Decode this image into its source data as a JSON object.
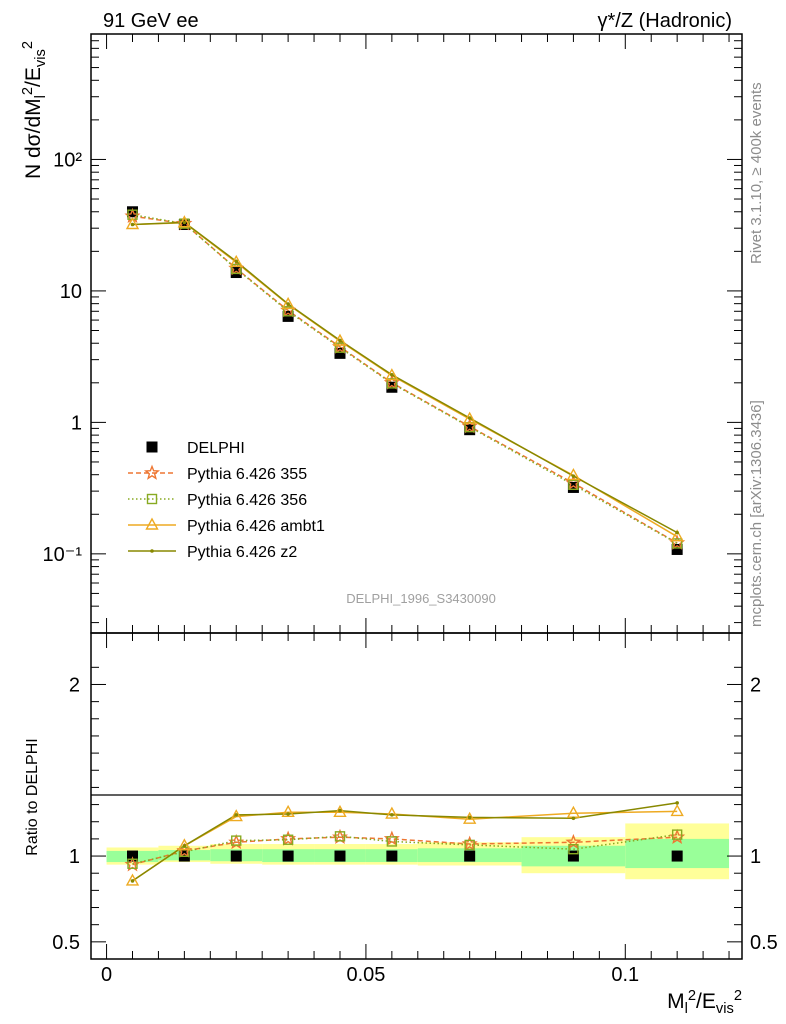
{
  "header": {
    "left_title": "91 GeV ee",
    "right_title": "γ*/Z (Hadronic)"
  },
  "side_text": {
    "rivet": "Rivet 3.1.10, ≥ 400k events",
    "mcplots": "mcplots.cern.ch [arXiv:1306.3436]"
  },
  "watermark": "DELPHI_1996_S3430090",
  "colors": {
    "data": "#000000",
    "p355": "#ee7733",
    "p356": "#88aa22",
    "ambt1": "#eeaa22",
    "z2": "#888800",
    "band_yellow": "#ffff99",
    "band_green": "#99ff99"
  },
  "chart_data": [
    {
      "type": "line",
      "panel": "main",
      "ylabel": "N dσ/dM_l²/E_vis²",
      "yscale": "log",
      "ylim": [
        0.025,
        900
      ],
      "xlim": [
        -0.003,
        0.1225
      ],
      "yticks": [
        "10⁻¹",
        "1",
        "10",
        "10²"
      ],
      "grid": false,
      "legend_position": "left-center",
      "x": [
        0.005,
        0.015,
        0.025,
        0.035,
        0.045,
        0.055,
        0.07,
        0.09,
        0.11
      ],
      "series": [
        {
          "name": "DELPHI",
          "style": "data",
          "values": [
            40.0,
            32.0,
            13.8,
            6.4,
            3.35,
            1.85,
            0.88,
            0.32,
            0.108
          ]
        },
        {
          "name": "Pythia 6.426 355",
          "style": "p355",
          "values": [
            37.0,
            32.5,
            14.8,
            7.1,
            3.75,
            2.0,
            0.93,
            0.345,
            0.121
          ]
        },
        {
          "name": "Pythia 6.426 356",
          "style": "p356",
          "values": [
            38.0,
            32.5,
            14.7,
            7.0,
            3.7,
            1.98,
            0.92,
            0.335,
            0.12
          ]
        },
        {
          "name": "Pythia 6.426 ambt1",
          "style": "ambt1",
          "values": [
            32.0,
            33.0,
            16.5,
            7.9,
            4.15,
            2.27,
            1.06,
            0.395,
            0.135
          ]
        },
        {
          "name": "Pythia 6.426 z2",
          "style": "z2",
          "values": [
            32.0,
            33.2,
            16.8,
            7.95,
            4.2,
            2.3,
            1.08,
            0.39,
            0.145
          ]
        }
      ]
    },
    {
      "type": "line",
      "panel": "ratio",
      "xlabel": "M_l²/E_vis²",
      "ylabel": "Ratio to DELPHI",
      "ylim": [
        0.4,
        2.3
      ],
      "xlim": [
        -0.003,
        0.1225
      ],
      "xticks": [
        "0",
        "0.05",
        "0.1"
      ],
      "yticks": [
        "0.5",
        "1",
        "2"
      ],
      "x": [
        0.005,
        0.015,
        0.025,
        0.035,
        0.045,
        0.055,
        0.07,
        0.09,
        0.11
      ],
      "bands": {
        "bins": [
          [
            0.0,
            0.01
          ],
          [
            0.01,
            0.02
          ],
          [
            0.02,
            0.03
          ],
          [
            0.03,
            0.04
          ],
          [
            0.04,
            0.05
          ],
          [
            0.05,
            0.06
          ],
          [
            0.06,
            0.08
          ],
          [
            0.08,
            0.1
          ],
          [
            0.1,
            0.12
          ]
        ],
        "yellow_lo": [
          0.95,
          0.965,
          0.955,
          0.95,
          0.95,
          0.95,
          0.945,
          0.9,
          0.865
        ],
        "yellow_hi": [
          1.05,
          1.06,
          1.07,
          1.07,
          1.07,
          1.07,
          1.08,
          1.11,
          1.19
        ],
        "green_lo": [
          0.965,
          0.975,
          0.97,
          0.965,
          0.965,
          0.965,
          0.965,
          0.94,
          0.93
        ],
        "green_hi": [
          1.03,
          1.035,
          1.04,
          1.04,
          1.04,
          1.04,
          1.045,
          1.06,
          1.1
        ]
      },
      "series": [
        {
          "name": "DELPHI",
          "style": "data",
          "values": [
            1,
            1,
            1,
            1,
            1,
            1,
            1,
            1,
            1
          ]
        },
        {
          "name": "Pythia 6.426 355",
          "style": "p355",
          "values": [
            0.95,
            1.03,
            1.08,
            1.1,
            1.11,
            1.1,
            1.07,
            1.08,
            1.11
          ]
        },
        {
          "name": "Pythia 6.426 356",
          "style": "p356",
          "values": [
            0.955,
            1.025,
            1.09,
            1.095,
            1.115,
            1.085,
            1.065,
            1.04,
            1.125
          ]
        },
        {
          "name": "Pythia 6.426 ambt1",
          "style": "ambt1",
          "values": [
            0.855,
            1.06,
            1.23,
            1.255,
            1.255,
            1.245,
            1.215,
            1.25,
            1.26
          ]
        },
        {
          "name": "Pythia 6.426 z2",
          "style": "z2",
          "values": [
            0.855,
            1.06,
            1.24,
            1.245,
            1.265,
            1.24,
            1.225,
            1.22,
            1.31
          ]
        }
      ]
    }
  ]
}
